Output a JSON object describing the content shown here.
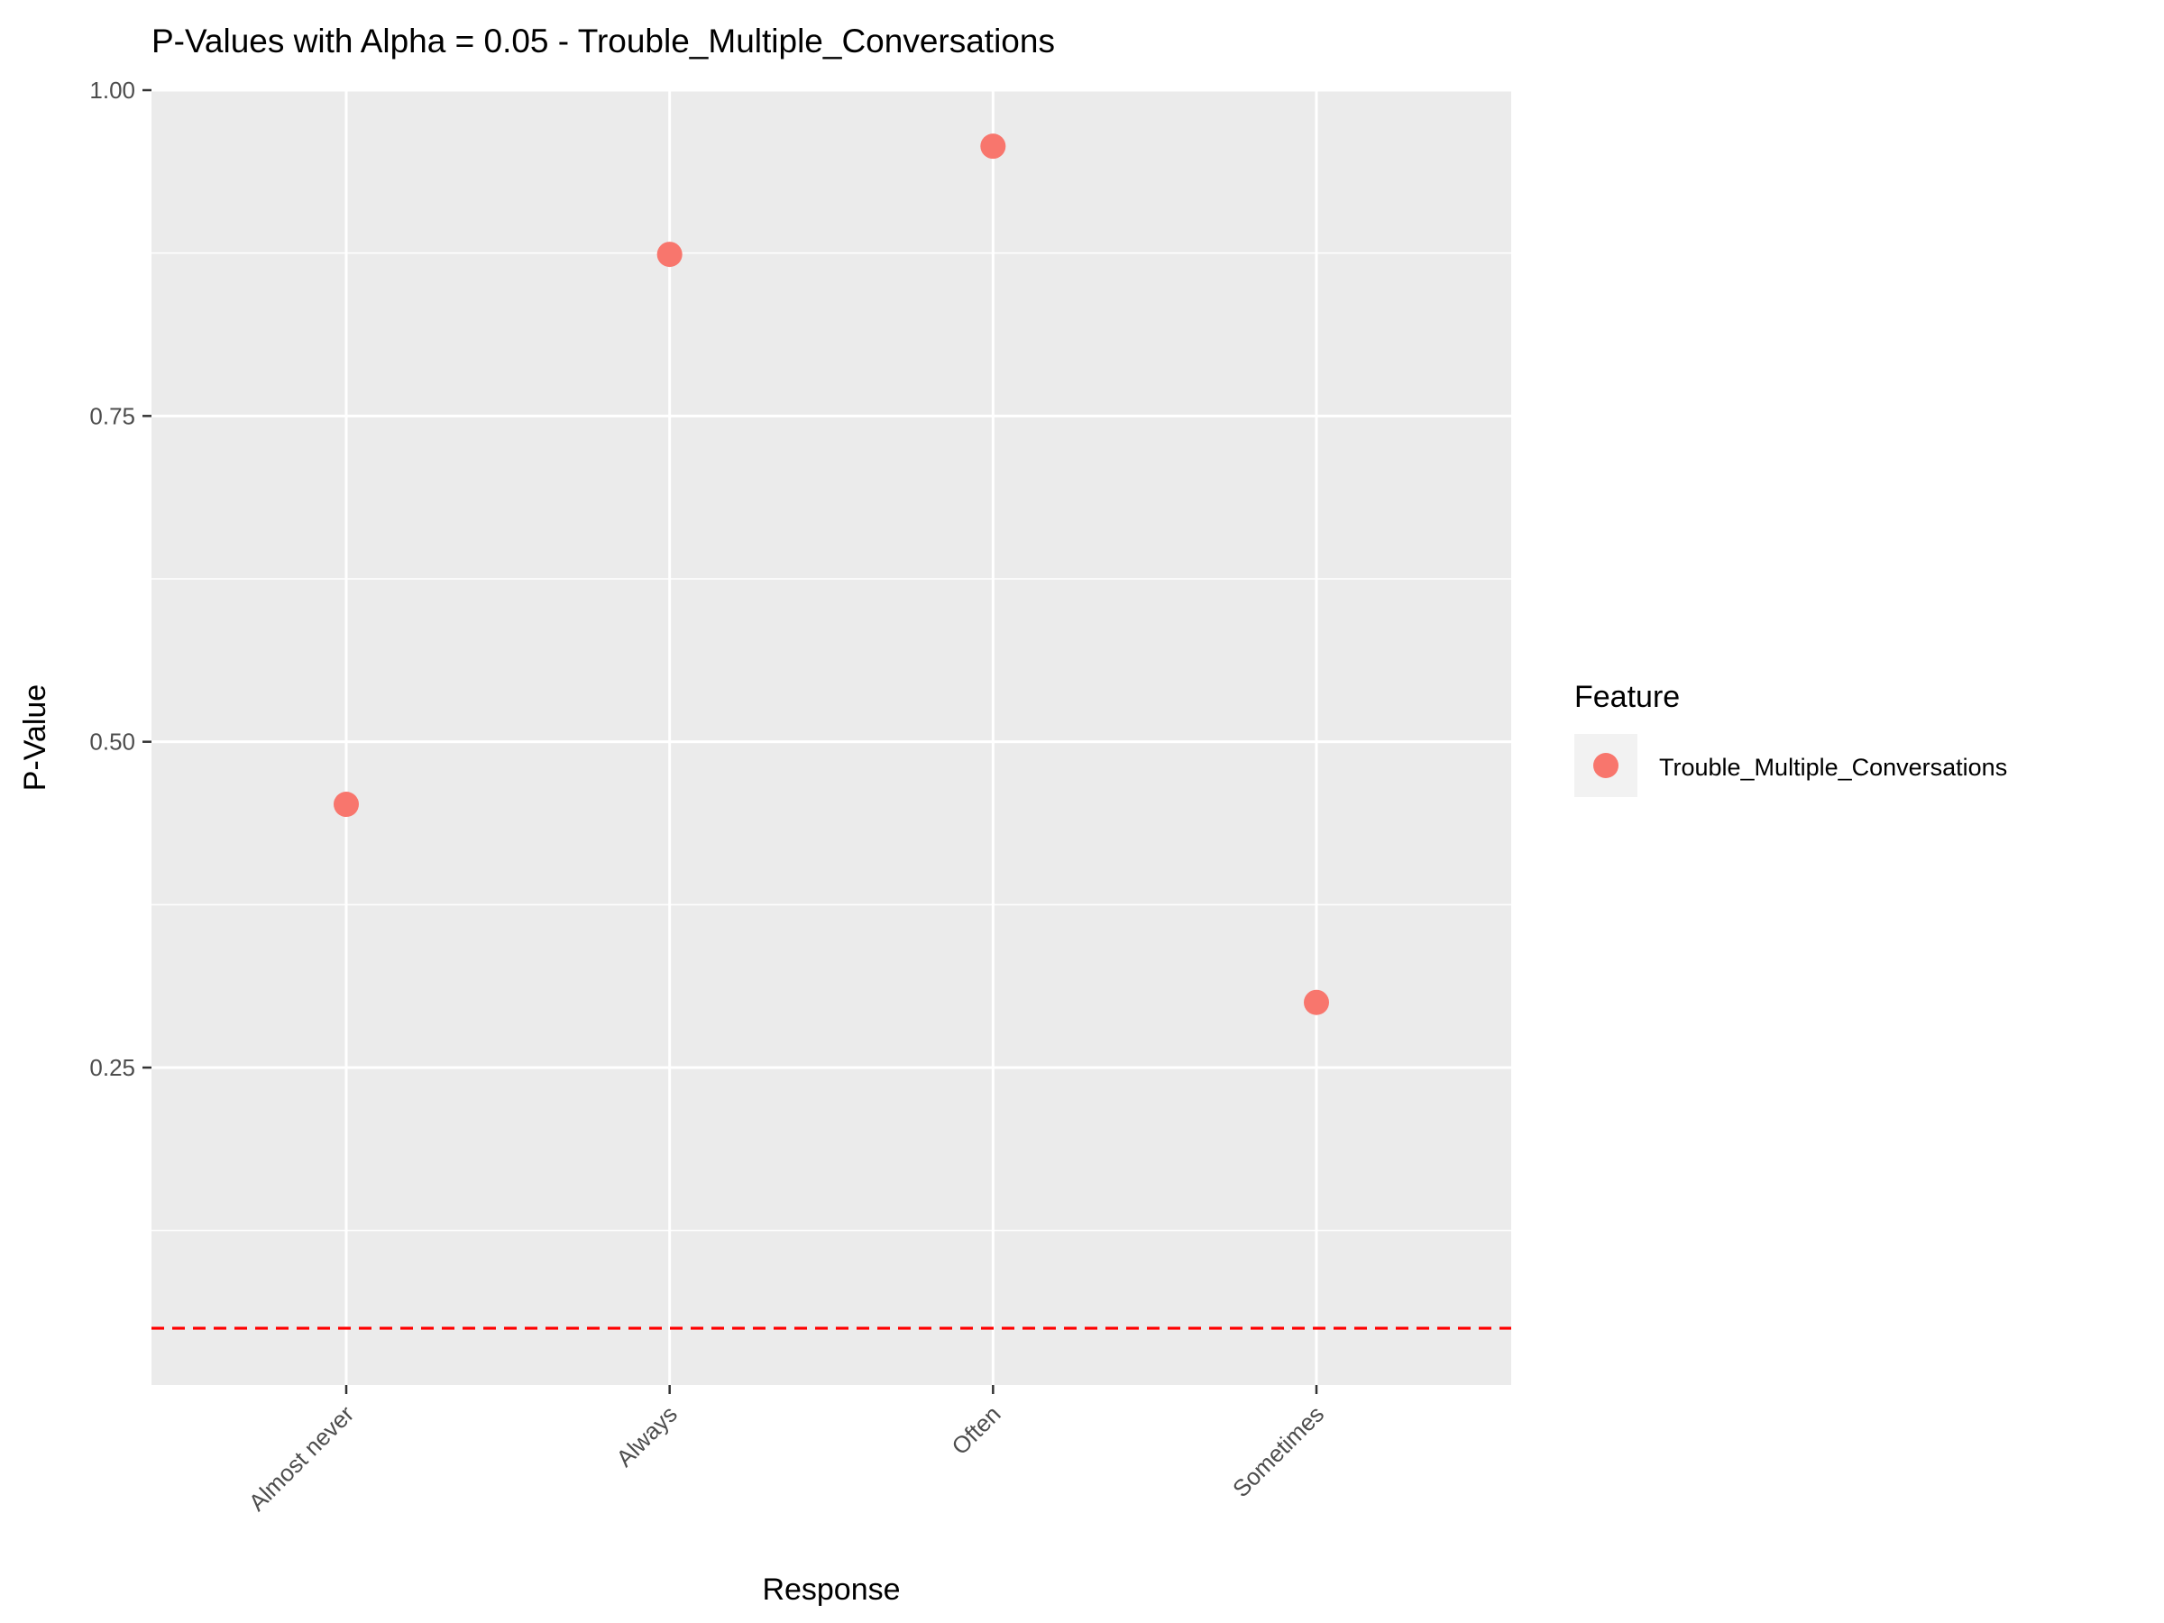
{
  "chart_data": {
    "type": "scatter",
    "title": "P-Values with Alpha = 0.05 - Trouble_Multiple_Conversations",
    "xlabel": "Response",
    "ylabel": "P-Value",
    "categories": [
      "Almost never",
      "Always",
      "Often",
      "Sometimes"
    ],
    "series": [
      {
        "name": "Trouble_Multiple_Conversations",
        "values": [
          0.452,
          0.874,
          0.957,
          0.3
        ]
      }
    ],
    "ylim": [
      0.0,
      1.0
    ],
    "yticks": [
      0.25,
      0.5,
      0.75,
      1.0
    ],
    "ytick_labels": [
      "0.25",
      "0.50",
      "0.75",
      "1.00"
    ],
    "alpha_line": 0.05,
    "grid": true,
    "legend": {
      "title": "Feature",
      "placement": "right"
    },
    "colors": {
      "point": "#F8766D",
      "alpha_line": "#FF0000",
      "panel": "#EBEBEB",
      "grid": "#FFFFFF"
    }
  }
}
